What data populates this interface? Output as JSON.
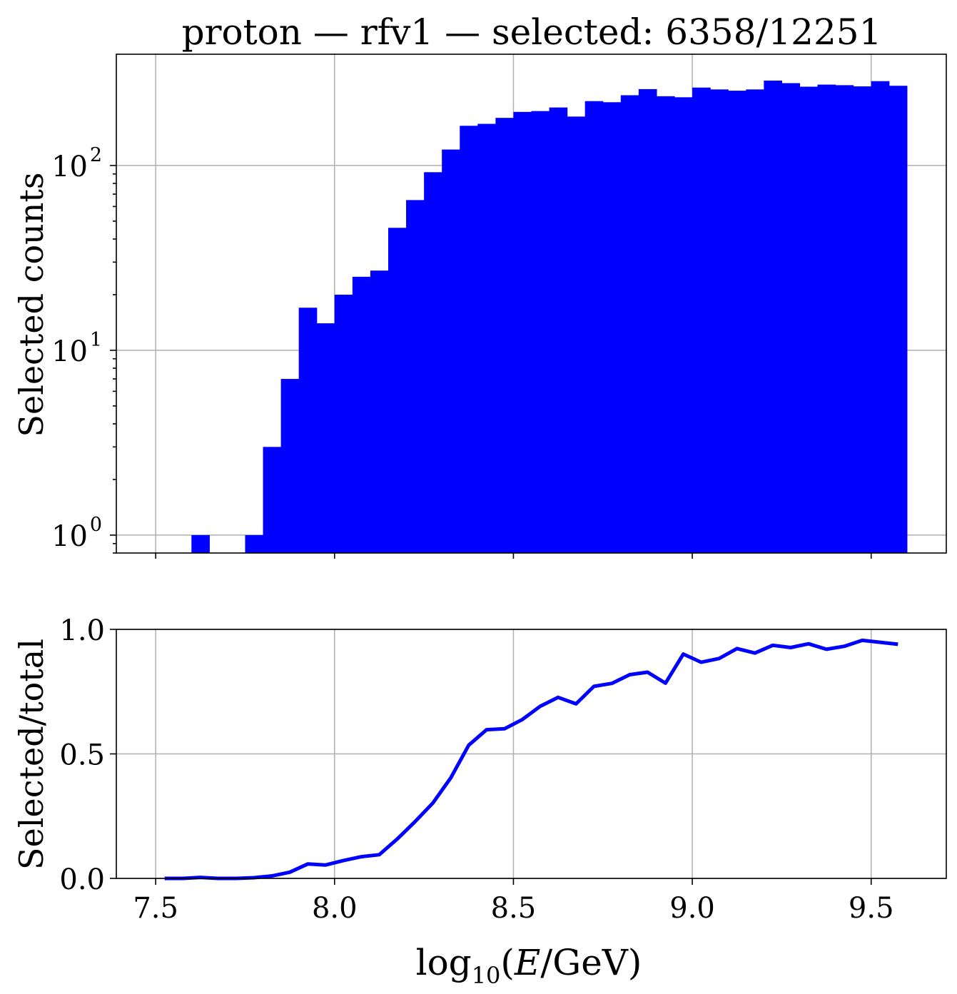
{
  "chart_data": [
    {
      "type": "bar",
      "title": "proton — rfv1 — selected: 6358/12251",
      "ylabel": "Selected counts",
      "xlabel": "",
      "yscale": "log",
      "ylim": [
        0.8,
        400
      ],
      "xlim": [
        7.39,
        9.71
      ],
      "grid": true,
      "color": "#0000ff",
      "y_tick_labels": [
        {
          "base": "10",
          "exp": "0",
          "value": 1
        },
        {
          "base": "10",
          "exp": "1",
          "value": 10
        },
        {
          "base": "10",
          "exp": "2",
          "value": 100
        }
      ],
      "bin_width": 0.05,
      "bin_starts": [
        7.5,
        7.55,
        7.6,
        7.65,
        7.7,
        7.75,
        7.8,
        7.85,
        7.9,
        7.95,
        8.0,
        8.05,
        8.1,
        8.15,
        8.2,
        8.25,
        8.3,
        8.35,
        8.4,
        8.45,
        8.5,
        8.55,
        8.6,
        8.65,
        8.7,
        8.75,
        8.8,
        8.85,
        8.9,
        8.95,
        9.0,
        9.05,
        9.1,
        9.15,
        9.2,
        9.25,
        9.3,
        9.35,
        9.4,
        9.45,
        9.5,
        9.55
      ],
      "values": [
        0,
        0,
        1,
        0,
        0,
        1,
        3,
        7,
        17,
        14,
        20,
        25,
        27,
        46,
        65,
        92,
        122,
        164,
        168,
        181,
        195,
        197,
        206,
        184,
        223,
        220,
        240,
        259,
        237,
        234,
        264,
        258,
        254,
        258,
        288,
        279,
        267,
        274,
        272,
        268,
        286,
        270
      ]
    },
    {
      "type": "line",
      "title": "",
      "ylabel": "Selected/total",
      "xlabel": "log10(E/GeV)",
      "ylim": [
        0.0,
        1.0
      ],
      "xlim": [
        7.39,
        9.71
      ],
      "grid": true,
      "color": "#0000ff",
      "x_ticks": [
        "7.5",
        "8.0",
        "8.5",
        "9.0",
        "9.5"
      ],
      "y_ticks": [
        "0.0",
        "0.5",
        "1.0"
      ],
      "x": [
        7.525,
        7.575,
        7.625,
        7.675,
        7.725,
        7.775,
        7.825,
        7.875,
        7.925,
        7.975,
        8.025,
        8.075,
        8.125,
        8.175,
        8.225,
        8.275,
        8.325,
        8.375,
        8.425,
        8.475,
        8.525,
        8.575,
        8.625,
        8.675,
        8.725,
        8.775,
        8.825,
        8.875,
        8.925,
        8.975,
        9.025,
        9.075,
        9.125,
        9.175,
        9.225,
        9.275,
        9.325,
        9.375,
        9.425,
        9.475,
        9.525,
        9.575
      ],
      "y": [
        0.0,
        0.0,
        0.004,
        0.0,
        0.0,
        0.003,
        0.01,
        0.025,
        0.058,
        0.054,
        0.072,
        0.087,
        0.095,
        0.158,
        0.228,
        0.303,
        0.404,
        0.535,
        0.597,
        0.601,
        0.638,
        0.691,
        0.727,
        0.701,
        0.771,
        0.783,
        0.818,
        0.828,
        0.784,
        0.901,
        0.868,
        0.883,
        0.923,
        0.905,
        0.936,
        0.927,
        0.942,
        0.92,
        0.932,
        0.956,
        0.948,
        0.94
      ]
    }
  ]
}
